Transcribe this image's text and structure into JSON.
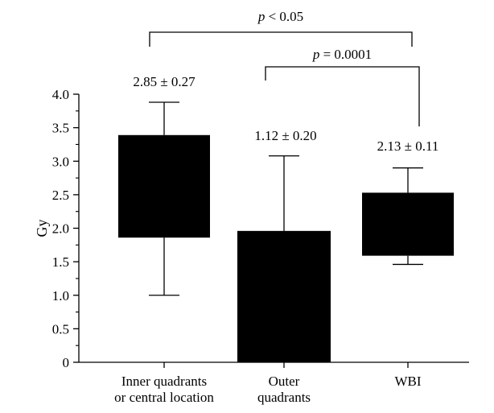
{
  "chart_data": {
    "type": "box",
    "ylabel": "Gy",
    "ylim": [
      0,
      4.0
    ],
    "yticks": [
      "0",
      "0.5",
      "1.0",
      "1.5",
      "2.0",
      "2.5",
      "3.0",
      "3.5",
      "4.0"
    ],
    "categories": [
      [
        "Inner quadrants",
        "or central location"
      ],
      [
        "Outer",
        "quadrants"
      ],
      [
        "WBI"
      ]
    ],
    "boxes": [
      {
        "whisker_low": 1.0,
        "q1": 1.86,
        "q3": 3.39,
        "whisker_high": 3.88,
        "label": "2.85 ± 0.27"
      },
      {
        "whisker_low": 0.0,
        "q1": 0.0,
        "q3": 1.96,
        "whisker_high": 3.08,
        "label": "1.12 ± 0.20"
      },
      {
        "whisker_low": 1.46,
        "q1": 1.59,
        "q3": 2.53,
        "whisker_high": 2.9,
        "label": "2.13 ± 0.11"
      }
    ],
    "comparisons": [
      {
        "from": 0,
        "to": 2,
        "p_symbol": "p",
        "p_text": " < 0.05"
      },
      {
        "from": 1,
        "to": 2,
        "p_symbol": "p",
        "p_text": " = 0.0001"
      }
    ],
    "box_color": "#000000"
  }
}
